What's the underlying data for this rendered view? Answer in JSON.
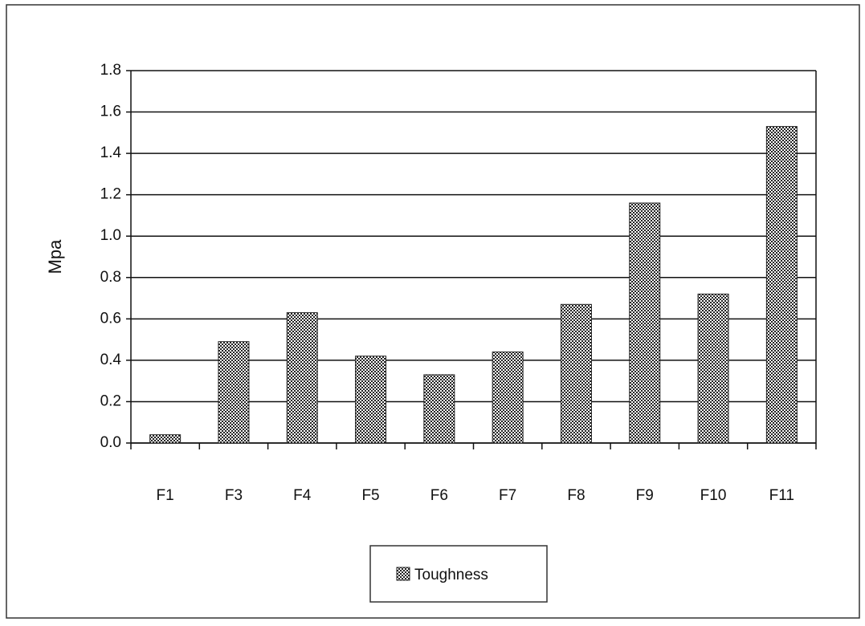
{
  "chart_data": {
    "type": "bar",
    "y_label": "Mpa",
    "categories": [
      "F1",
      "F3",
      "F4",
      "F5",
      "F6",
      "F7",
      "F8",
      "F9",
      "F10",
      "F11"
    ],
    "series": [
      {
        "name": "Toughness",
        "color": "#222222",
        "values": [
          0.04,
          0.49,
          0.63,
          0.42,
          0.33,
          0.44,
          0.67,
          1.16,
          0.72,
          1.53
        ]
      }
    ],
    "ylim": [
      0,
      1.8
    ],
    "yticks": [
      {
        "value": 0,
        "label": "0.0"
      },
      0.2,
      0.4,
      0.6,
      0.8,
      {
        "value": 1,
        "label": "1.0"
      },
      1.2,
      1.4,
      1.6,
      1.8
    ],
    "grid": true,
    "legend": "bottom"
  }
}
